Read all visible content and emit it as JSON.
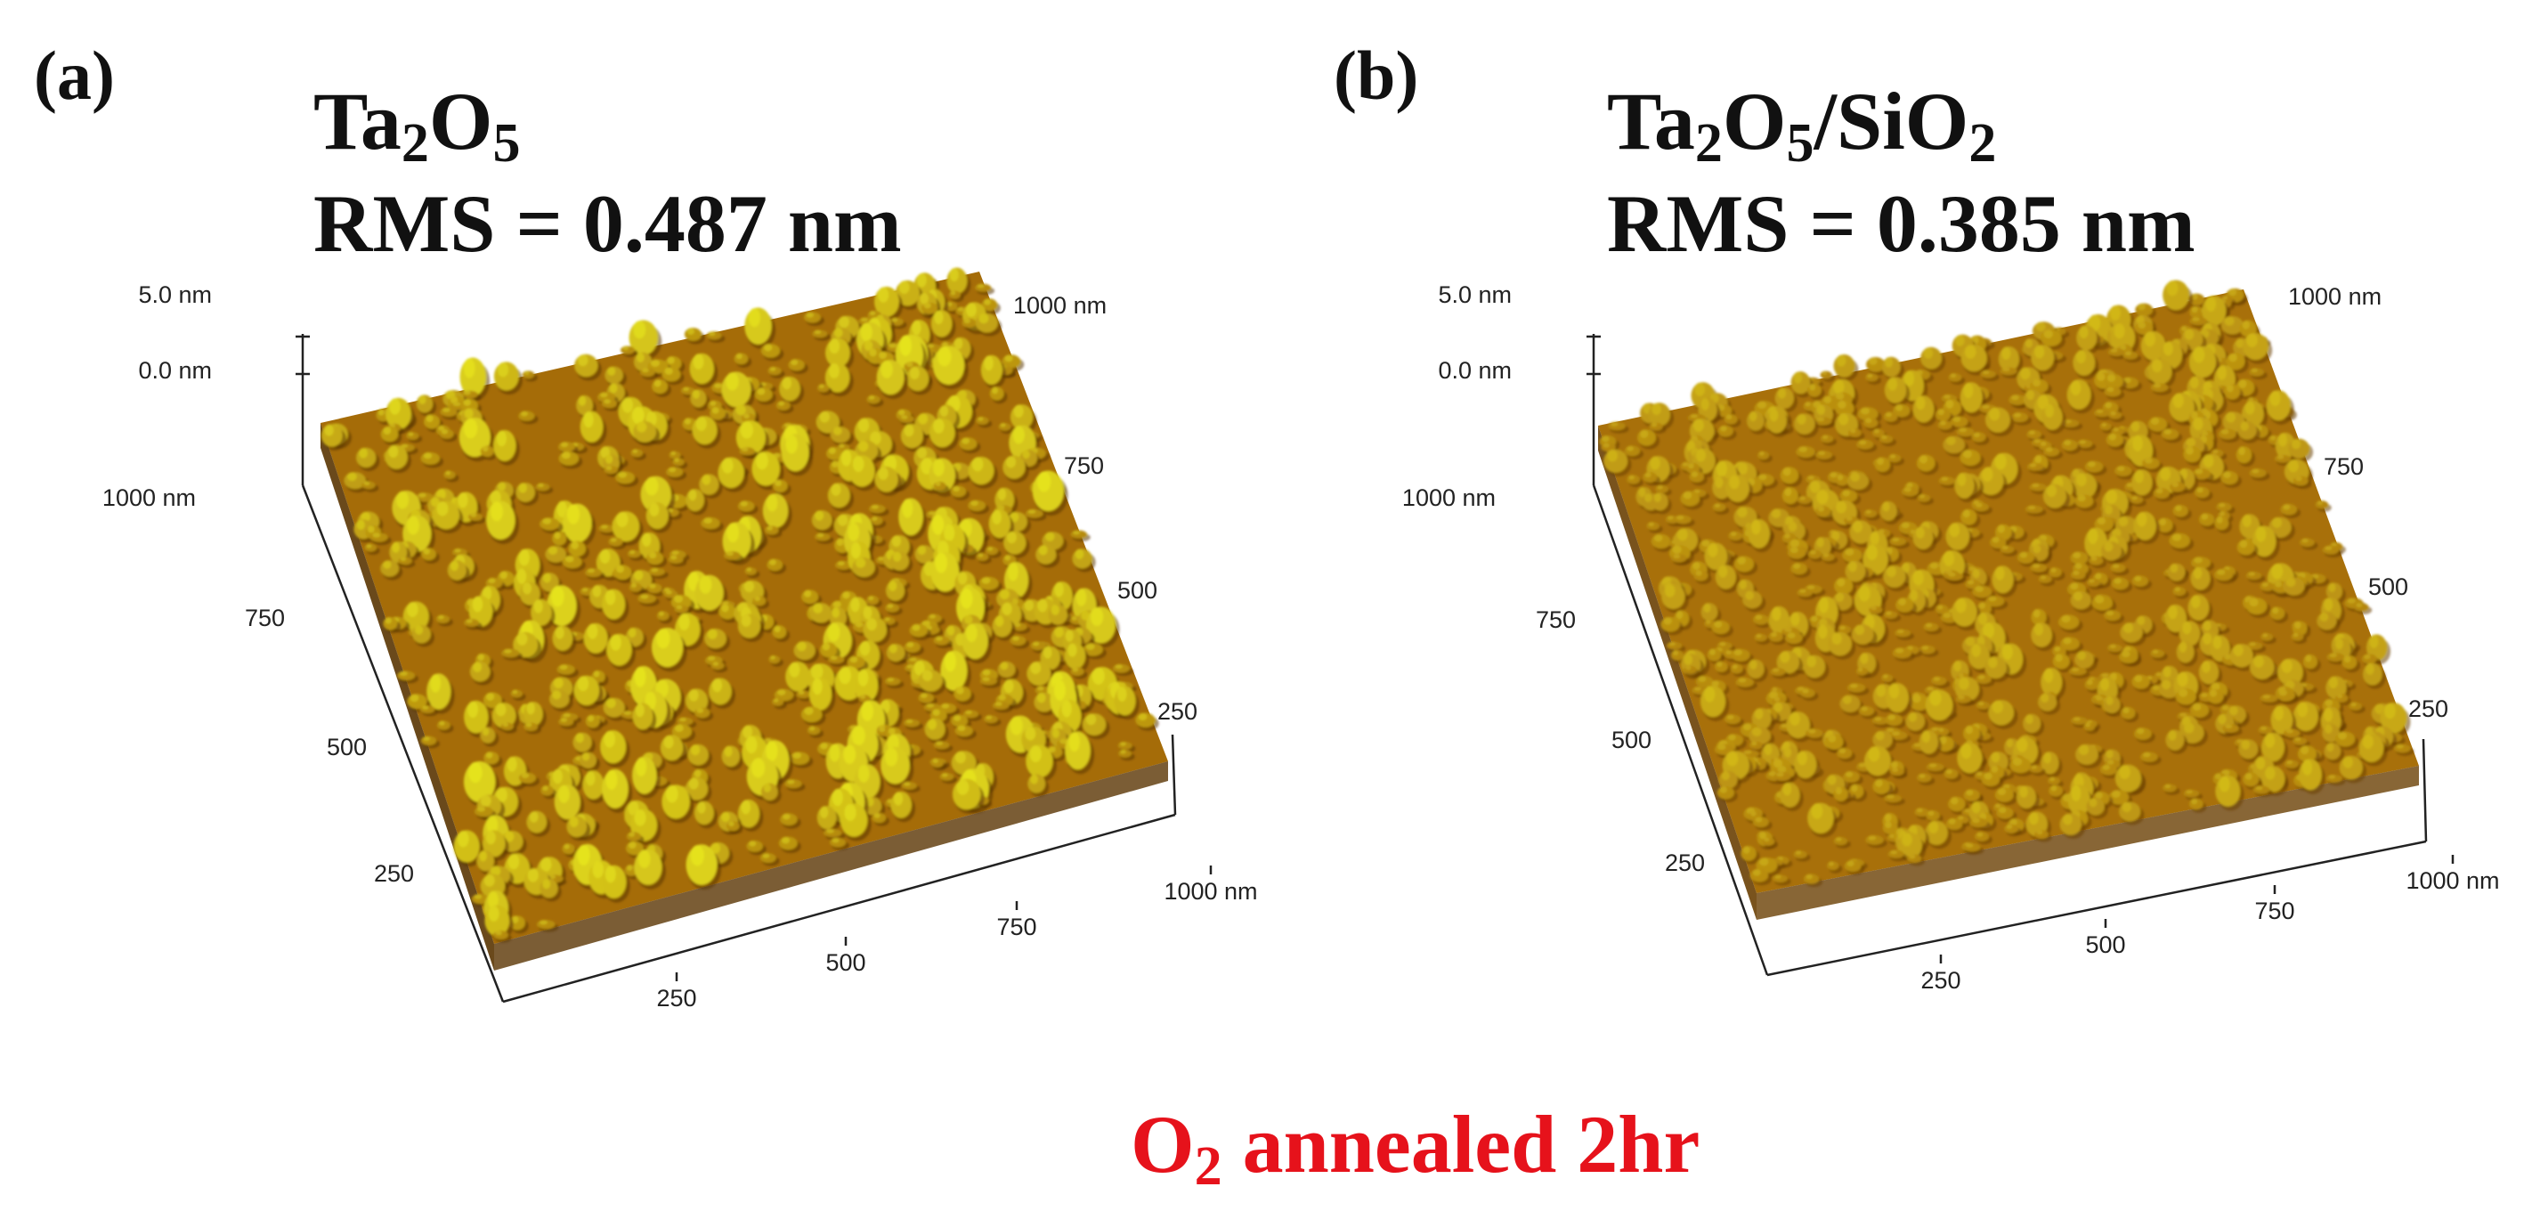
{
  "panels": [
    {
      "label": "(a)",
      "material": {
        "parts": [
          "Ta",
          "2",
          "O",
          "5",
          ""
        ]
      },
      "rms_text": "RMS = 0.487 nm",
      "rms_nm": 0.487,
      "z_ticks": [
        "5.0 nm",
        "0.0 nm"
      ],
      "left_ticks": [
        "1000 nm",
        "750",
        "500",
        "250"
      ],
      "bottom_ticks": [
        "250",
        "500",
        "750",
        "1000 nm"
      ],
      "right_ticks": [
        "1000 nm",
        "750",
        "500",
        "250"
      ],
      "colors": {
        "base": "#a56c08",
        "peak": "#e6e420",
        "valley": "#5a3502"
      }
    },
    {
      "label": "(b)",
      "material": {
        "parts": [
          "Ta",
          "2",
          "O",
          "5",
          "/SiO",
          "2"
        ]
      },
      "rms_text": "RMS = 0.385 nm",
      "rms_nm": 0.385,
      "z_ticks": [
        "5.0 nm",
        "0.0 nm"
      ],
      "left_ticks": [
        "1000 nm",
        "750",
        "500",
        "250"
      ],
      "bottom_ticks": [
        "250",
        "500",
        "750",
        "1000 nm"
      ],
      "right_ticks": [
        "1000 nm",
        "750",
        "500",
        "250"
      ],
      "colors": {
        "base": "#a8700a",
        "peak": "#d8c41c",
        "valley": "#6a4004"
      }
    }
  ],
  "caption": {
    "prefix": "O",
    "sub": "2",
    "text": " annealed 2hr"
  }
}
